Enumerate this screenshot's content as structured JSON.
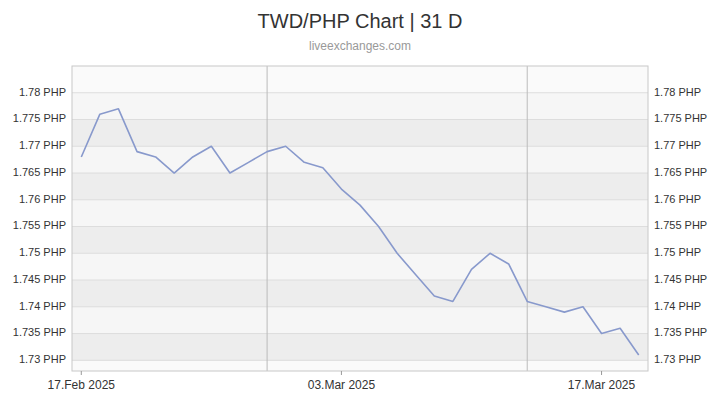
{
  "chart_data": {
    "type": "line",
    "title": "TWD/PHP Chart | 31 D",
    "subtitle": "liveexchanges.com",
    "color": "#8899cc",
    "x": [
      0,
      1,
      2,
      3,
      4,
      5,
      6,
      7,
      8,
      9,
      10,
      11,
      12,
      13,
      14,
      15,
      16,
      17,
      18,
      19,
      20,
      21,
      22,
      23,
      24,
      25,
      26,
      27,
      28,
      29,
      30
    ],
    "values": [
      1.768,
      1.776,
      1.777,
      1.769,
      1.768,
      1.765,
      1.768,
      1.77,
      1.765,
      1.767,
      1.769,
      1.77,
      1.767,
      1.766,
      1.762,
      1.759,
      1.755,
      1.75,
      1.746,
      1.742,
      1.741,
      1.747,
      1.75,
      1.748,
      1.741,
      1.74,
      1.739,
      1.74,
      1.735,
      1.736,
      1.731
    ],
    "xlim": [
      -0.5,
      30.5
    ],
    "xticks": [
      {
        "value": 0,
        "label": "17.Feb 2025"
      },
      {
        "value": 14,
        "label": "03.Mar 2025"
      },
      {
        "value": 28,
        "label": "17.Mar 2025"
      }
    ],
    "ylim": [
      1.728,
      1.785
    ],
    "yticks": [
      {
        "value": 1.73,
        "label": "1.73 PHP"
      },
      {
        "value": 1.735,
        "label": "1.735 PHP"
      },
      {
        "value": 1.74,
        "label": "1.74 PHP"
      },
      {
        "value": 1.745,
        "label": "1.745 PHP"
      },
      {
        "value": 1.75,
        "label": "1.75 PHP"
      },
      {
        "value": 1.755,
        "label": "1.755 PHP"
      },
      {
        "value": 1.76,
        "label": "1.76 PHP"
      },
      {
        "value": 1.765,
        "label": "1.765 PHP"
      },
      {
        "value": 1.77,
        "label": "1.77 PHP"
      },
      {
        "value": 1.775,
        "label": "1.775 PHP"
      },
      {
        "value": 1.78,
        "label": "1.78 PHP"
      }
    ],
    "vlines": [
      10,
      24
    ],
    "grid": true
  }
}
